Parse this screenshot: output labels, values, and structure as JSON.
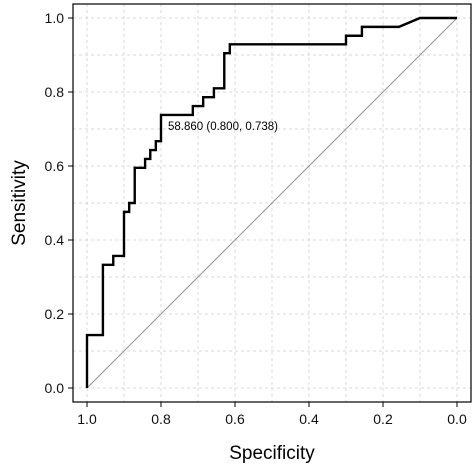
{
  "chart_data": {
    "type": "line",
    "title": "",
    "xlabel": "Specificity",
    "ylabel": "Sensitivity",
    "x_reversed": true,
    "xlim": [
      1.0,
      0.0
    ],
    "ylim": [
      0.0,
      1.0
    ],
    "x_ticks": [
      1.0,
      0.8,
      0.6,
      0.4,
      0.2,
      0.0
    ],
    "x_tick_labels": [
      "1.0",
      "0.8",
      "0.6",
      "0.4",
      "0.2",
      "0.0"
    ],
    "y_ticks": [
      0.0,
      0.2,
      0.4,
      0.6,
      0.8,
      1.0
    ],
    "y_tick_labels": [
      "0.0",
      "0.2",
      "0.4",
      "0.6",
      "0.8",
      "1.0"
    ],
    "grid": true,
    "colors": {
      "roc_line": "#000000",
      "diagonal": "#999999",
      "grid": "#d9d9d9",
      "frame": "#000000"
    },
    "series": [
      {
        "role": "roc-curve",
        "points": [
          [
            1.0,
            0.0
          ],
          [
            1.0,
            0.143
          ],
          [
            0.957,
            0.143
          ],
          [
            0.957,
            0.333
          ],
          [
            0.929,
            0.333
          ],
          [
            0.929,
            0.357
          ],
          [
            0.9,
            0.357
          ],
          [
            0.9,
            0.476
          ],
          [
            0.886,
            0.476
          ],
          [
            0.886,
            0.5
          ],
          [
            0.871,
            0.5
          ],
          [
            0.871,
            0.595
          ],
          [
            0.843,
            0.595
          ],
          [
            0.843,
            0.619
          ],
          [
            0.829,
            0.619
          ],
          [
            0.829,
            0.643
          ],
          [
            0.814,
            0.643
          ],
          [
            0.814,
            0.667
          ],
          [
            0.8,
            0.667
          ],
          [
            0.8,
            0.738
          ],
          [
            0.714,
            0.738
          ],
          [
            0.714,
            0.762
          ],
          [
            0.686,
            0.762
          ],
          [
            0.686,
            0.786
          ],
          [
            0.657,
            0.786
          ],
          [
            0.657,
            0.81
          ],
          [
            0.629,
            0.81
          ],
          [
            0.629,
            0.905
          ],
          [
            0.614,
            0.905
          ],
          [
            0.614,
            0.929
          ],
          [
            0.3,
            0.929
          ],
          [
            0.3,
            0.952
          ],
          [
            0.257,
            0.952
          ],
          [
            0.257,
            0.976
          ],
          [
            0.229,
            0.976
          ],
          [
            0.229,
            0.976
          ],
          [
            0.157,
            0.976
          ],
          [
            0.1,
            1.0
          ],
          [
            0.0,
            1.0
          ]
        ]
      },
      {
        "role": "reference-diagonal",
        "points": [
          [
            1.0,
            0.0
          ],
          [
            0.0,
            1.0
          ]
        ]
      }
    ],
    "annotations": [
      {
        "text": "58.860 (0.800, 0.738)",
        "x": 0.8,
        "y": 0.738
      }
    ]
  }
}
